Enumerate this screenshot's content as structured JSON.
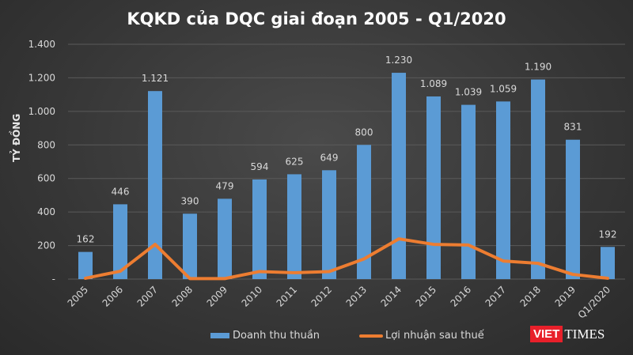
{
  "chart_data": {
    "type": "bar",
    "title": "KQKD của DQC giai đoạn 2005 - Q1/2020",
    "ylabel": "TỶ ĐỒNG",
    "xlabel": "",
    "ylim": [
      0,
      1400
    ],
    "yticks": [
      0,
      200,
      400,
      600,
      800,
      1000,
      1200,
      1400
    ],
    "ytick_labels": [
      "-",
      "200",
      "400",
      "600",
      "800",
      "1.000",
      "1.200",
      "1.400"
    ],
    "grid": true,
    "legend_position": "bottom",
    "categories": [
      "2005",
      "2006",
      "2007",
      "2008",
      "2009",
      "2010",
      "2011",
      "2012",
      "2013",
      "2014",
      "2015",
      "2016",
      "2017",
      "2018",
      "2019",
      "Q1/2020"
    ],
    "series": [
      {
        "name": "Doanh thu thuần",
        "type": "bar",
        "color": "#5b9bd5",
        "values": [
          162,
          446,
          1121,
          390,
          479,
          594,
          625,
          649,
          800,
          1230,
          1089,
          1039,
          1059,
          1190,
          831,
          192
        ],
        "labels": [
          "162",
          "446",
          "1.121",
          "390",
          "479",
          "594",
          "625",
          "649",
          "800",
          "1.230",
          "1.089",
          "1.039",
          "1.059",
          "1.190",
          "831",
          "192"
        ]
      },
      {
        "name": "Lợi nhuận sau thuế",
        "type": "line",
        "color": "#ed7d31",
        "values": [
          5,
          47,
          207,
          3,
          3,
          45,
          38,
          45,
          120,
          240,
          207,
          203,
          108,
          94,
          28,
          5
        ]
      }
    ]
  },
  "watermark": {
    "brand_red": "VIET",
    "brand": "TIMES"
  }
}
